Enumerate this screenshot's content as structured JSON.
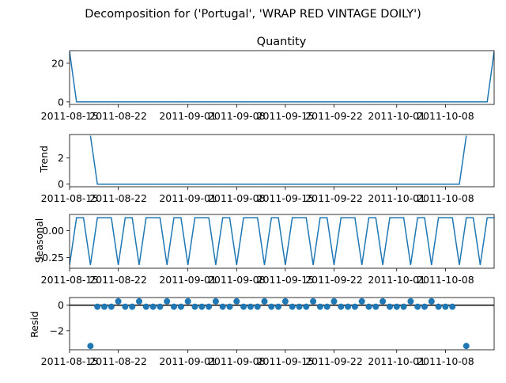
{
  "figure": {
    "suptitle": "Decomposition for ('Portugal', 'WRAP RED VINTAGE DOILY')",
    "color_line": "#1f77b4",
    "color_points": "#1f77b4"
  },
  "chart_data": [
    {
      "type": "line",
      "title": "Quantity",
      "ylabel": "",
      "x_start": "2011-08-15",
      "x_end": "2011-10-15",
      "x_ticks": [
        "2011-08-15",
        "2011-08-22",
        "2011-09-01",
        "2011-09-08",
        "2011-09-15",
        "2011-09-22",
        "2011-10-01",
        "2011-10-08"
      ],
      "ylim": [
        -1.3,
        26.5
      ],
      "y_ticks": [
        0,
        20
      ],
      "series": [
        {
          "x": "2011-08-15",
          "y": 26
        },
        {
          "x": "2011-08-16",
          "y": 0
        },
        {
          "x": "2011-10-14",
          "y": 0
        },
        {
          "x": "2011-10-15",
          "y": 26
        }
      ]
    },
    {
      "type": "line",
      "title": "",
      "ylabel": "Trend",
      "x_start": "2011-08-15",
      "x_end": "2011-10-15",
      "x_ticks": [
        "2011-08-15",
        "2011-08-22",
        "2011-09-01",
        "2011-09-08",
        "2011-09-15",
        "2011-09-22",
        "2011-10-01",
        "2011-10-08"
      ],
      "ylim": [
        -0.2,
        3.8
      ],
      "y_ticks": [
        0,
        2
      ],
      "series": [
        {
          "x": "2011-08-18",
          "y": 3.71
        },
        {
          "x": "2011-08-19",
          "y": 0
        },
        {
          "x": "2011-10-10",
          "y": 0
        },
        {
          "x": "2011-10-11",
          "y": 3.71
        }
      ]
    },
    {
      "type": "line",
      "title": "",
      "ylabel": "Seasonal",
      "x_start": "2011-08-15",
      "x_end": "2011-10-15",
      "x_ticks": [
        "2011-08-15",
        "2011-08-22",
        "2011-09-01",
        "2011-09-08",
        "2011-09-15",
        "2011-09-22",
        "2011-10-01",
        "2011-10-08"
      ],
      "ylim": [
        -0.35,
        0.15
      ],
      "y_ticks": [
        0.0,
        -0.25
      ],
      "y_tick_labels": [
        "0.00",
        "−0.25"
      ],
      "season_pattern": [
        -0.32,
        0.12,
        0.12,
        -0.32,
        0.12,
        0.12,
        0.12
      ],
      "series_start": "2011-08-15",
      "series_days": 62
    },
    {
      "type": "scatter",
      "title": "",
      "ylabel": "Resid",
      "x_start": "2011-08-15",
      "x_end": "2011-10-15",
      "x_ticks": [
        "2011-08-15",
        "2011-08-22",
        "2011-09-01",
        "2011-09-08",
        "2011-09-15",
        "2011-09-22",
        "2011-10-01",
        "2011-10-08"
      ],
      "ylim": [
        -3.5,
        0.6
      ],
      "y_ticks": [
        0,
        -2
      ],
      "y_tick_labels": [
        "0",
        "−2"
      ],
      "baseline": 0,
      "points": [
        [
          "2011-08-18",
          -3.2
        ],
        [
          "2011-08-19",
          -0.12
        ],
        [
          "2011-08-20",
          -0.12
        ],
        [
          "2011-08-21",
          -0.12
        ],
        [
          "2011-08-22",
          0.3
        ],
        [
          "2011-08-23",
          -0.12
        ],
        [
          "2011-08-24",
          -0.12
        ],
        [
          "2011-08-25",
          0.3
        ],
        [
          "2011-08-26",
          -0.12
        ],
        [
          "2011-08-27",
          -0.12
        ],
        [
          "2011-08-28",
          -0.12
        ],
        [
          "2011-08-29",
          0.3
        ],
        [
          "2011-08-30",
          -0.12
        ],
        [
          "2011-08-31",
          -0.12
        ],
        [
          "2011-09-01",
          0.3
        ],
        [
          "2011-09-02",
          -0.12
        ],
        [
          "2011-09-03",
          -0.12
        ],
        [
          "2011-09-04",
          -0.12
        ],
        [
          "2011-09-05",
          0.3
        ],
        [
          "2011-09-06",
          -0.12
        ],
        [
          "2011-09-07",
          -0.12
        ],
        [
          "2011-09-08",
          0.3
        ],
        [
          "2011-09-09",
          -0.12
        ],
        [
          "2011-09-10",
          -0.12
        ],
        [
          "2011-09-11",
          -0.12
        ],
        [
          "2011-09-12",
          0.3
        ],
        [
          "2011-09-13",
          -0.12
        ],
        [
          "2011-09-14",
          -0.12
        ],
        [
          "2011-09-15",
          0.3
        ],
        [
          "2011-09-16",
          -0.12
        ],
        [
          "2011-09-17",
          -0.12
        ],
        [
          "2011-09-18",
          -0.12
        ],
        [
          "2011-09-19",
          0.3
        ],
        [
          "2011-09-20",
          -0.12
        ],
        [
          "2011-09-21",
          -0.12
        ],
        [
          "2011-09-22",
          0.3
        ],
        [
          "2011-09-23",
          -0.12
        ],
        [
          "2011-09-24",
          -0.12
        ],
        [
          "2011-09-25",
          -0.12
        ],
        [
          "2011-09-26",
          0.3
        ],
        [
          "2011-09-27",
          -0.12
        ],
        [
          "2011-09-28",
          -0.12
        ],
        [
          "2011-09-29",
          0.3
        ],
        [
          "2011-09-30",
          -0.12
        ],
        [
          "2011-10-01",
          -0.12
        ],
        [
          "2011-10-02",
          -0.12
        ],
        [
          "2011-10-03",
          0.3
        ],
        [
          "2011-10-04",
          -0.12
        ],
        [
          "2011-10-05",
          -0.12
        ],
        [
          "2011-10-06",
          0.3
        ],
        [
          "2011-10-07",
          -0.12
        ],
        [
          "2011-10-08",
          -0.12
        ],
        [
          "2011-10-09",
          -0.12
        ],
        [
          "2011-10-11",
          -3.2
        ]
      ]
    }
  ]
}
